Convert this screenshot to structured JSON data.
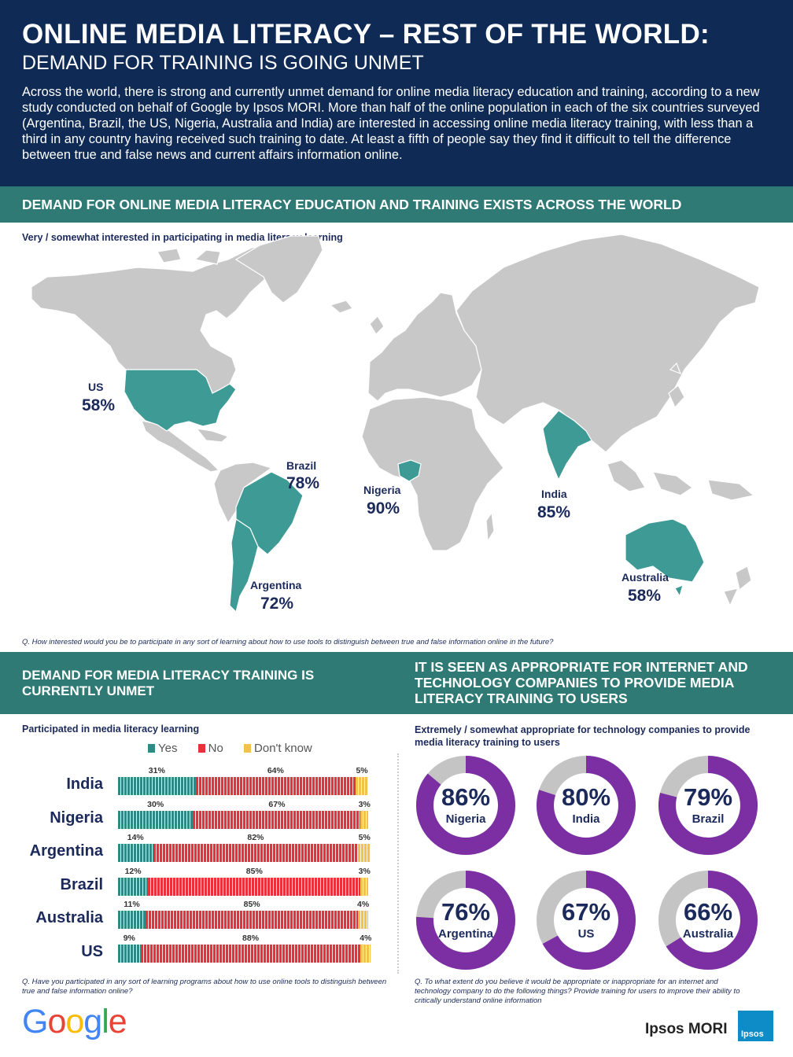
{
  "header": {
    "title": "ONLINE MEDIA LITERACY – REST OF THE WORLD:",
    "subtitle": "DEMAND FOR TRAINING IS GOING UNMET",
    "intro": "Across the world, there is strong and currently unmet demand for online media literacy education and training, according to a new study conducted on behalf of Google by Ipsos MORI. More than half of the online population in each of the six countries surveyed (Argentina, Brazil, the US, Nigeria, Australia and India) are interested in accessing online media literacy training, with less than a third in any country having received such training to date. At least a fifth of people say they find it difficult to tell the difference between true and false news and current affairs information online."
  },
  "section1": {
    "heading": "DEMAND FOR ONLINE MEDIA LITERACY EDUCATION AND TRAINING EXISTS ACROSS THE WORLD",
    "subheading": "Very / somewhat interested in participating in media literacy learning",
    "question": "Q.   How interested would you  be to participate in any sort of learning about how to use tools to distinguish between true and false information online in the future?"
  },
  "section2": {
    "heading": "DEMAND FOR MEDIA LITERACY TRAINING IS CURRENTLY UNMET",
    "subheading": "Participated in media literacy learning",
    "question": "Q.   Have you participated in any sort of learning programs about how to use online tools to distinguish between true and false information online?"
  },
  "section3": {
    "heading": "IT IS SEEN AS APPROPRIATE FOR INTERNET AND TECHNOLOGY COMPANIES TO PROVIDE MEDIA LITERACY TRAINING TO USERS",
    "subheading": "Extremely / somewhat appropriate for technology companies to provide media literacy training to users",
    "question": "Q.   To what extent do you  believe it would be appropriate or inappropriate for an internet and technology company to do the following things? Provide training for users to improve their ability to critically understand online information"
  },
  "legend": {
    "yes": "Yes",
    "no": "No",
    "dont_know": "Don't know"
  },
  "colors": {
    "navy": "#0e2a55",
    "teal": "#2f7a74",
    "map_teal": "#3d9a94",
    "land": "#c8c8c8",
    "red": "#e8313a",
    "yellow": "#f2c24a",
    "purple": "#7b2fa3",
    "grey": "#c4c4c4"
  },
  "footer": {
    "google": "Google",
    "ipsos": "Ipsos MORI",
    "ipsos_logo": "Ipsos"
  },
  "chart_data": [
    {
      "type": "map",
      "title": "Very / somewhat interested in participating in media literacy learning",
      "categories": [
        "US",
        "Brazil",
        "Argentina",
        "Nigeria",
        "India",
        "Australia"
      ],
      "values": [
        "58%",
        "78%",
        "72%",
        "90%",
        "85%",
        "58%"
      ],
      "numeric": [
        58,
        78,
        72,
        90,
        85,
        58
      ]
    },
    {
      "type": "bar",
      "stacked": true,
      "orientation": "horizontal",
      "title": "Participated in media literacy learning",
      "categories": [
        "India",
        "Nigeria",
        "Argentina",
        "Brazil",
        "Australia",
        "US"
      ],
      "series": [
        {
          "name": "Yes",
          "values": [
            31,
            30,
            14,
            12,
            11,
            9
          ],
          "labels": [
            "31%",
            "30%",
            "14%",
            "12%",
            "11%",
            "9%"
          ]
        },
        {
          "name": "No",
          "values": [
            64,
            67,
            82,
            85,
            85,
            88
          ],
          "labels": [
            "64%",
            "67%",
            "82%",
            "85%",
            "85%",
            "88%"
          ]
        },
        {
          "name": "Don't know",
          "values": [
            5,
            3,
            5,
            3,
            4,
            4
          ],
          "labels": [
            "5%",
            "3%",
            "5%",
            "3%",
            "4%",
            "4%"
          ]
        }
      ],
      "xlim": [
        0,
        100
      ],
      "legend": "top"
    },
    {
      "type": "pie",
      "variant": "donut",
      "title": "Extremely / somewhat appropriate for technology companies to provide media literacy training to users",
      "categories": [
        "Nigeria",
        "India",
        "Brazil",
        "Argentina",
        "US",
        "Australia"
      ],
      "values": [
        86,
        80,
        79,
        76,
        67,
        66
      ],
      "labels": [
        "86%",
        "80%",
        "79%",
        "76%",
        "67%",
        "66%"
      ]
    }
  ]
}
